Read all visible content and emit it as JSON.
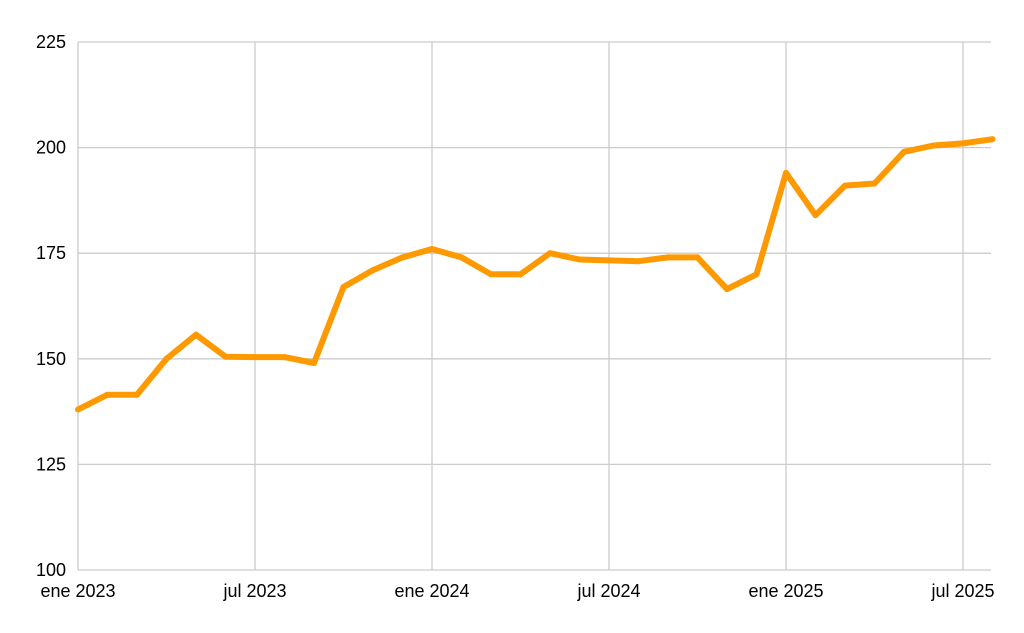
{
  "chart_data": {
    "type": "line",
    "title": "",
    "xlabel": "",
    "ylabel": "",
    "x_tick_labels": [
      "ene 2023",
      "jul 2023",
      "ene 2024",
      "jul 2024",
      "ene 2025",
      "jul 2025"
    ],
    "y_ticks": [
      100,
      125,
      150,
      175,
      200,
      225
    ],
    "ylim": [
      100,
      225
    ],
    "grid": true,
    "legend": "none",
    "series": [
      {
        "color": "#ff9900",
        "x": [
          "2023-01",
          "2023-02",
          "2023-03",
          "2023-04",
          "2023-05",
          "2023-06",
          "2023-07",
          "2023-08",
          "2023-09",
          "2023-10",
          "2023-11",
          "2023-12",
          "2024-01",
          "2024-02",
          "2024-03",
          "2024-04",
          "2024-05",
          "2024-06",
          "2024-07",
          "2024-08",
          "2024-09",
          "2024-10",
          "2024-11",
          "2024-12",
          "2025-01",
          "2025-02",
          "2025-03",
          "2025-04",
          "2025-05",
          "2025-06",
          "2025-07",
          "2025-08"
        ],
        "values": [
          138,
          141.5,
          141.5,
          150,
          155.7,
          150.5,
          150.4,
          150.4,
          149,
          167,
          171,
          174,
          176,
          174,
          170,
          170,
          175,
          173.5,
          173.3,
          173.1,
          174,
          174,
          166.5,
          170,
          194,
          184,
          191,
          191.5,
          199,
          200.5,
          201,
          202
        ]
      }
    ],
    "gridline_color": "#cccccc"
  }
}
